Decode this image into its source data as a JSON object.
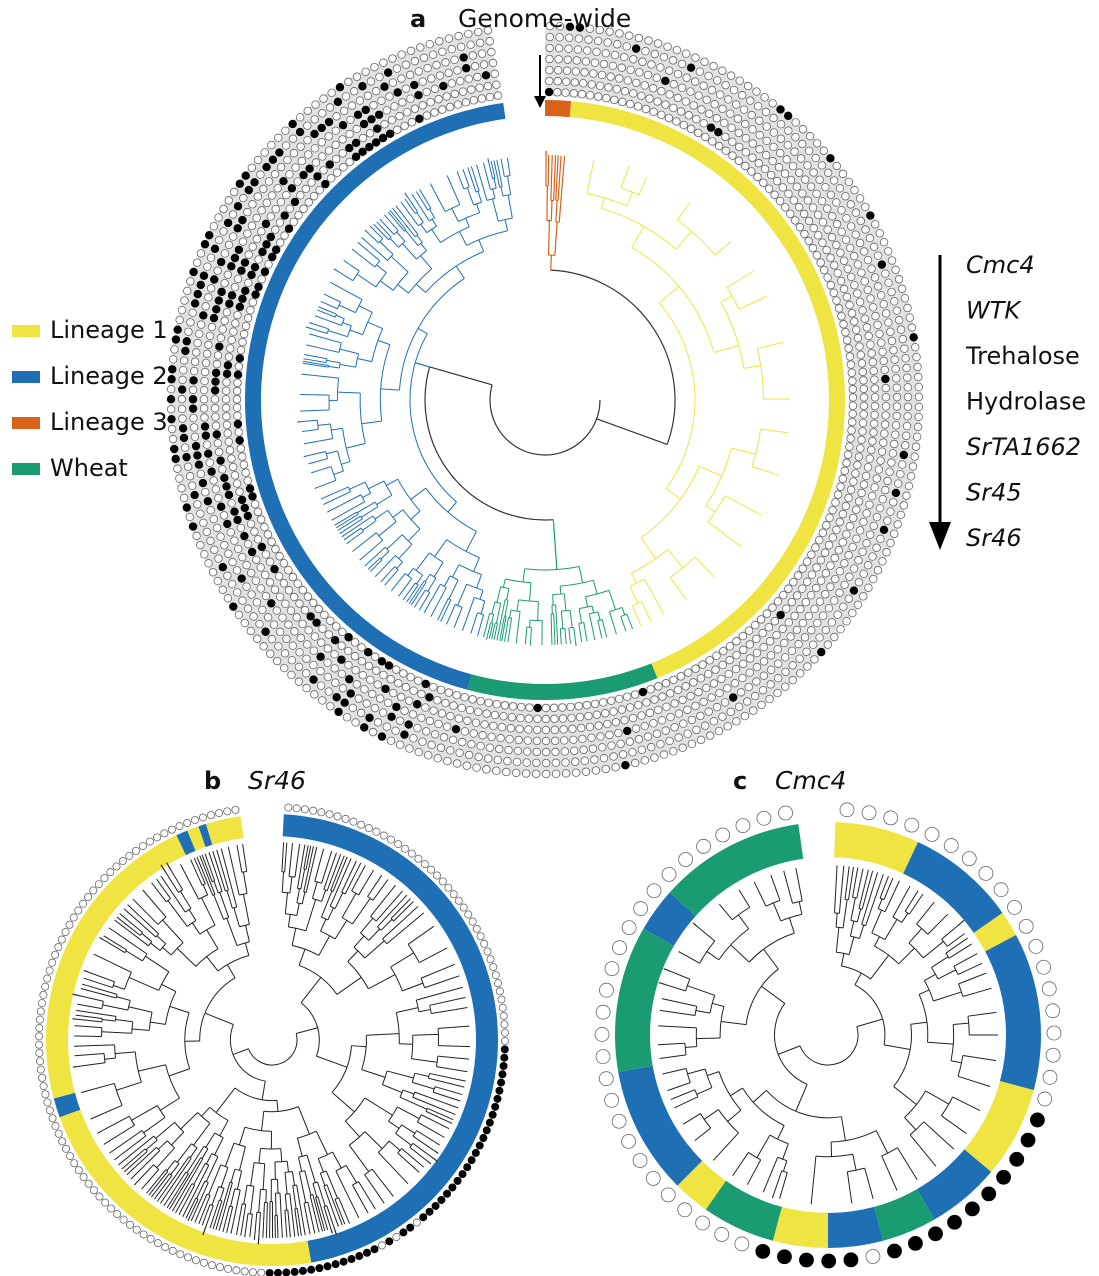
{
  "panel_a": {
    "label": "a",
    "title": "Genome-wide"
  },
  "panel_b": {
    "label": "b",
    "title": "Sr46"
  },
  "panel_c": {
    "label": "c",
    "title": "Cmc4"
  },
  "legend": [
    {
      "name": "Lineage 1",
      "color": "#f0e442"
    },
    {
      "name": "Lineage 2",
      "color": "#1f6fb4"
    },
    {
      "name": "Lineage 3",
      "color": "#d9621a"
    },
    {
      "name": "Wheat",
      "color": "#1a9b72"
    }
  ],
  "genes": [
    {
      "name": "Cmc4",
      "italic": true
    },
    {
      "name": "WTK",
      "italic": true
    },
    {
      "name": "Trehalose"
    },
    {
      "name": "Hydrolase"
    },
    {
      "name": "SrTA1662",
      "italic": true
    },
    {
      "name": "Sr45",
      "italic": true
    },
    {
      "name": "Sr46",
      "italic": true
    }
  ]
}
